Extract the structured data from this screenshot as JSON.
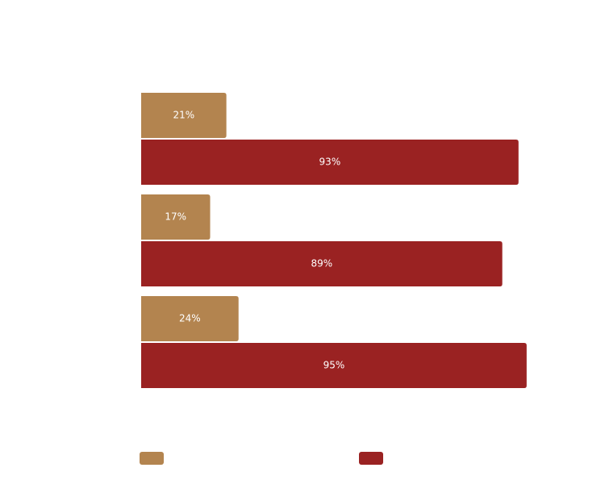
{
  "chart_data": {
    "type": "hbar",
    "categories": [
      null,
      null,
      null
    ],
    "series": [
      {
        "color": "#b3844f",
        "values": [
          21,
          17,
          24
        ],
        "value_labels": [
          "21%",
          "17%",
          "24%"
        ]
      },
      {
        "color": "#9a2222",
        "values": [
          93,
          89,
          95
        ],
        "value_labels": [
          "93%",
          "89%",
          "95%"
        ]
      }
    ]
  }
}
